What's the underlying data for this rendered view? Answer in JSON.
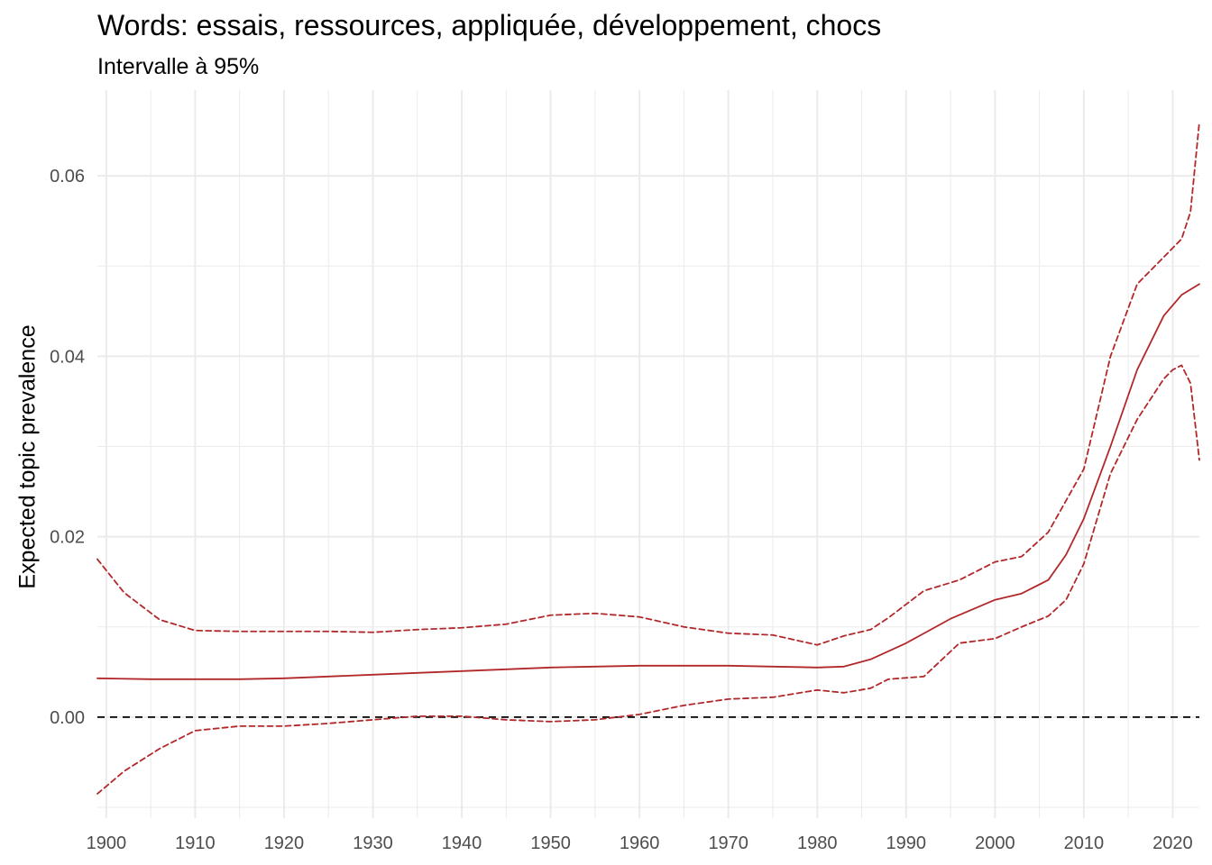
{
  "chart_data": {
    "type": "line",
    "title": "Words: essais, ressources, appliquée, développement, chocs",
    "subtitle": "Intervalle à 95%",
    "xlabel": "",
    "ylabel": "Expected topic prevalence",
    "xlim": [
      1899,
      2023
    ],
    "ylim": [
      -0.0112,
      0.0695
    ],
    "x_ticks": [
      1900,
      1910,
      1920,
      1930,
      1940,
      1950,
      1960,
      1970,
      1980,
      1990,
      2000,
      2010,
      2020
    ],
    "y_ticks": [
      0.0,
      0.02,
      0.04,
      0.06
    ],
    "y_tick_labels": [
      "0.00",
      "0.02",
      "0.04",
      "0.06"
    ],
    "grid": true,
    "reference_line": {
      "y": 0.0,
      "style": "dashed",
      "color": "#000000"
    },
    "colors": {
      "series": "#b2282a",
      "grid": "#ebebeb",
      "reference": "#000000"
    },
    "series": [
      {
        "role": "estimate",
        "style": "solid",
        "x": [
          1899,
          1905,
          1910,
          1915,
          1920,
          1925,
          1930,
          1935,
          1940,
          1945,
          1950,
          1955,
          1960,
          1965,
          1970,
          1975,
          1980,
          1983,
          1986,
          1990,
          1995,
          2000,
          2003,
          2006,
          2008,
          2010,
          2013,
          2016,
          2019,
          2021,
          2023
        ],
        "y": [
          0.0043,
          0.0042,
          0.0042,
          0.0042,
          0.0043,
          0.0045,
          0.0047,
          0.0049,
          0.0051,
          0.0053,
          0.0055,
          0.0056,
          0.0057,
          0.0057,
          0.0057,
          0.0056,
          0.0055,
          0.0056,
          0.0064,
          0.0082,
          0.0109,
          0.013,
          0.0137,
          0.0152,
          0.018,
          0.022,
          0.03,
          0.0385,
          0.0445,
          0.0468,
          0.048
        ]
      },
      {
        "role": "upper bound",
        "style": "dashed",
        "x": [
          1899,
          1902,
          1906,
          1910,
          1915,
          1920,
          1925,
          1930,
          1935,
          1940,
          1945,
          1950,
          1955,
          1960,
          1965,
          1970,
          1975,
          1980,
          1983,
          1986,
          1988,
          1992,
          1996,
          2000,
          2003,
          2006,
          2008,
          2010,
          2013,
          2016,
          2019,
          2021,
          2022,
          2023
        ],
        "y": [
          0.0175,
          0.0138,
          0.0108,
          0.0096,
          0.0095,
          0.0095,
          0.0095,
          0.0094,
          0.0097,
          0.0099,
          0.0103,
          0.0113,
          0.0115,
          0.0111,
          0.01,
          0.0093,
          0.0091,
          0.008,
          0.009,
          0.0097,
          0.011,
          0.014,
          0.0152,
          0.0172,
          0.0178,
          0.0205,
          0.024,
          0.0275,
          0.04,
          0.048,
          0.051,
          0.053,
          0.056,
          0.066
        ]
      },
      {
        "role": "lower bound",
        "style": "dashed",
        "x": [
          1899,
          1902,
          1906,
          1910,
          1915,
          1920,
          1925,
          1930,
          1935,
          1940,
          1945,
          1950,
          1955,
          1960,
          1965,
          1970,
          1975,
          1980,
          1983,
          1986,
          1988,
          1992,
          1996,
          2000,
          2003,
          2006,
          2008,
          2010,
          2013,
          2016,
          2019,
          2020,
          2021,
          2022,
          2023
        ],
        "y": [
          -0.0085,
          -0.006,
          -0.0035,
          -0.0015,
          -0.001,
          -0.001,
          -0.0007,
          -0.0003,
          0.0001,
          0.0001,
          -0.0003,
          -0.0005,
          -0.0003,
          0.0003,
          0.0013,
          0.002,
          0.0022,
          0.003,
          0.0027,
          0.0032,
          0.0042,
          0.0045,
          0.0082,
          0.0087,
          0.01,
          0.0112,
          0.013,
          0.017,
          0.027,
          0.033,
          0.0375,
          0.0385,
          0.039,
          0.037,
          0.0285
        ]
      }
    ]
  }
}
